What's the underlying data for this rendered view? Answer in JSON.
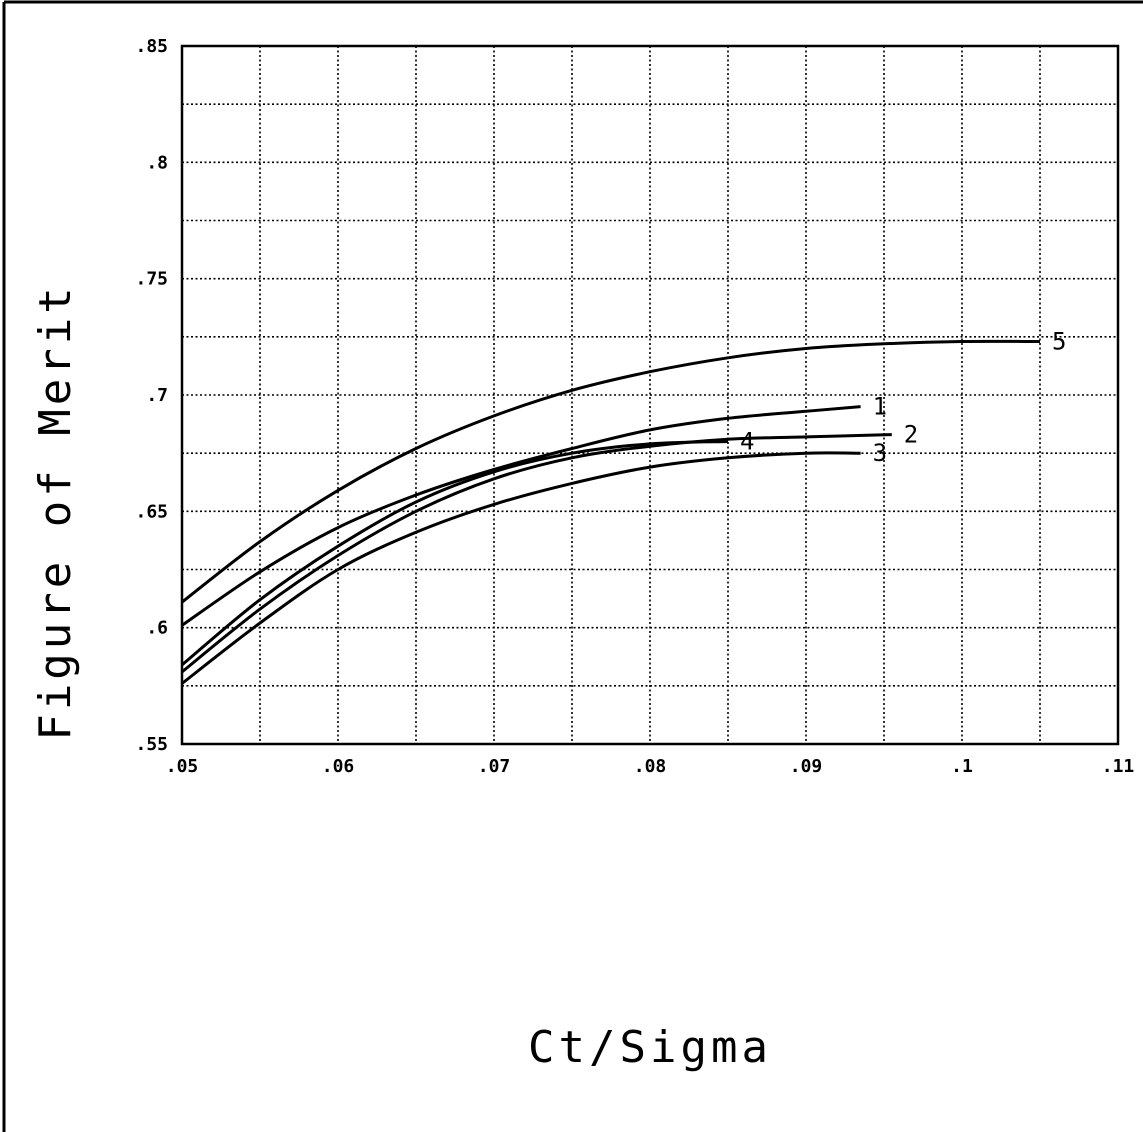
{
  "chart_data": {
    "type": "line",
    "title": "",
    "xlabel": "Ct/Sigma",
    "ylabel": "Figure of Merit",
    "xlim": [
      0.05,
      0.11
    ],
    "ylim": [
      0.55,
      0.85
    ],
    "grid": true,
    "x_tick_labels": [
      ".05",
      ".06",
      ".07",
      ".08",
      ".09",
      ".1",
      ".11"
    ],
    "y_tick_labels": [
      ".55",
      ".6",
      ".65",
      ".7",
      ".75",
      ".8",
      ".85"
    ],
    "series": [
      {
        "name": "5",
        "x": [
          0.05,
          0.055,
          0.06,
          0.065,
          0.07,
          0.075,
          0.08,
          0.085,
          0.09,
          0.095,
          0.1,
          0.105
        ],
        "y": [
          0.611,
          0.637,
          0.659,
          0.677,
          0.691,
          0.702,
          0.71,
          0.716,
          0.72,
          0.722,
          0.723,
          0.723
        ]
      },
      {
        "name": "1",
        "x": [
          0.05,
          0.055,
          0.06,
          0.065,
          0.07,
          0.075,
          0.08,
          0.085,
          0.09,
          0.0935
        ],
        "y": [
          0.601,
          0.624,
          0.643,
          0.657,
          0.668,
          0.677,
          0.685,
          0.69,
          0.693,
          0.695
        ]
      },
      {
        "name": "4",
        "x": [
          0.05,
          0.055,
          0.06,
          0.065,
          0.07,
          0.075,
          0.08,
          0.085
        ],
        "y": [
          0.584,
          0.612,
          0.635,
          0.654,
          0.667,
          0.675,
          0.679,
          0.68
        ]
      },
      {
        "name": "2",
        "x": [
          0.05,
          0.055,
          0.06,
          0.065,
          0.07,
          0.075,
          0.08,
          0.085,
          0.09,
          0.0955
        ],
        "y": [
          0.581,
          0.608,
          0.631,
          0.65,
          0.664,
          0.673,
          0.678,
          0.681,
          0.682,
          0.683
        ]
      },
      {
        "name": "3",
        "x": [
          0.05,
          0.055,
          0.06,
          0.065,
          0.07,
          0.075,
          0.08,
          0.085,
          0.09,
          0.0935
        ],
        "y": [
          0.576,
          0.602,
          0.625,
          0.641,
          0.653,
          0.662,
          0.669,
          0.673,
          0.675,
          0.675
        ]
      }
    ]
  }
}
